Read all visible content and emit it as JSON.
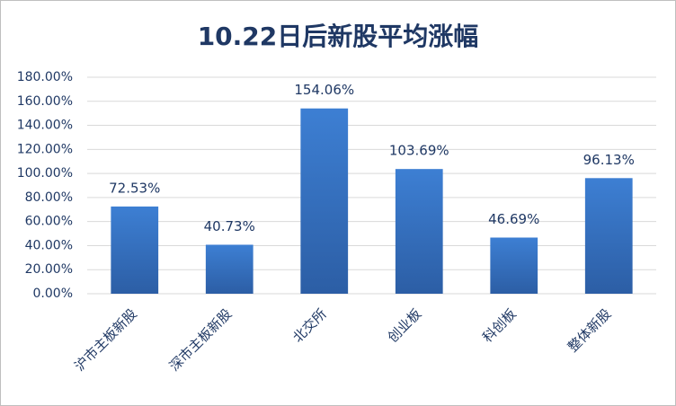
{
  "chart_data": {
    "type": "bar",
    "title": "10.22日后新股平均涨幅",
    "categories": [
      "沪市主板新股",
      "深市主板新股",
      "北交所",
      "创业板",
      "科创板",
      "整体新股"
    ],
    "values": [
      72.53,
      40.73,
      154.06,
      103.69,
      46.69,
      96.13
    ],
    "value_labels": [
      "72.53%",
      "40.73%",
      "154.06%",
      "103.69%",
      "46.69%",
      "96.13%"
    ],
    "color": "#3a75c4",
    "ylim": [
      0,
      180
    ],
    "yticks": [
      {
        "value": 0,
        "label": "0.00%"
      },
      {
        "value": 20,
        "label": "20.00%"
      },
      {
        "value": 40,
        "label": "40.00%"
      },
      {
        "value": 60,
        "label": "60.00%"
      },
      {
        "value": 80,
        "label": "80.00%"
      },
      {
        "value": 100,
        "label": "100.00%"
      },
      {
        "value": 120,
        "label": "120.00%"
      },
      {
        "value": 140,
        "label": "140.00%"
      },
      {
        "value": 160,
        "label": "160.00%"
      },
      {
        "value": 180,
        "label": "180.00%"
      }
    ],
    "grid": true
  }
}
